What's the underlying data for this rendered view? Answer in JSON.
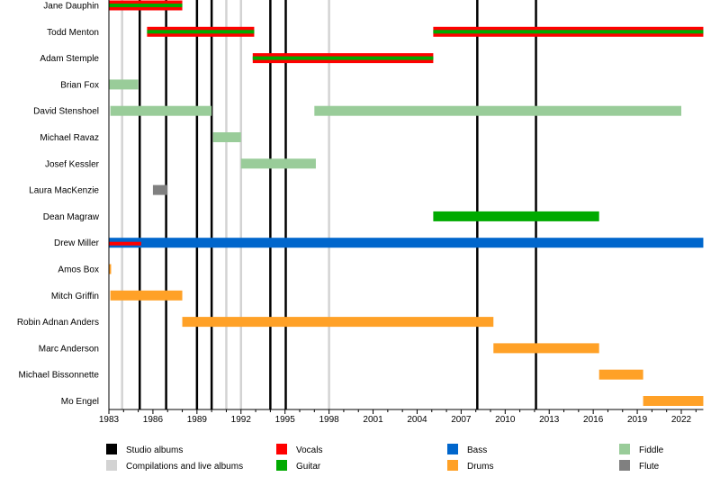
{
  "chart_data": {
    "type": "timeline",
    "xlim": [
      1983,
      2023.5
    ],
    "ticks": [
      1983,
      1986,
      1989,
      1992,
      1995,
      1998,
      2001,
      2004,
      2007,
      2010,
      2013,
      2016,
      2019,
      2022
    ],
    "tick_labels": [
      "1983",
      "1986",
      "1989",
      "1992",
      "1995",
      "1998",
      "2001",
      "2004",
      "2007",
      "2010",
      "2013",
      "2016",
      "2019",
      "2022"
    ],
    "studio_albums": [
      1985.1,
      1986.9,
      1989.0,
      1990.0,
      1994.0,
      1995.05,
      2008.1,
      2012.1
    ],
    "compilations": [
      1983.9,
      1991.0,
      1992.0,
      1998.0
    ],
    "colors": {
      "vocals": "#ff0000",
      "guitar": "#00aa00",
      "bass": "#0066cc",
      "drums": "#ffa127",
      "fiddle": "#99cc99",
      "flute": "#808080",
      "studio": "#000000",
      "compilation": "#d3d3d3"
    },
    "members": [
      {
        "name": "Jane Dauphin",
        "spans": [
          {
            "role": "vocals+guitar",
            "start": 1983,
            "end": 1988
          }
        ]
      },
      {
        "name": "Todd Menton",
        "spans": [
          {
            "role": "vocals+guitar",
            "start": 1985.6,
            "end": 1992.9
          },
          {
            "role": "vocals+guitar",
            "start": 2005.1,
            "end": 2023.5
          }
        ]
      },
      {
        "name": "Adam Stemple",
        "spans": [
          {
            "role": "vocals+guitar",
            "start": 1992.8,
            "end": 2005.1
          }
        ]
      },
      {
        "name": "Brian Fox",
        "spans": [
          {
            "role": "fiddle",
            "start": 1983,
            "end": 1985
          }
        ]
      },
      {
        "name": "David Stenshoel",
        "spans": [
          {
            "role": "fiddle",
            "start": 1983.1,
            "end": 1990
          },
          {
            "role": "fiddle",
            "start": 1997,
            "end": 2022
          }
        ]
      },
      {
        "name": "Michael Ravaz",
        "spans": [
          {
            "role": "fiddle",
            "start": 1990.1,
            "end": 1992
          }
        ]
      },
      {
        "name": "Josef Kessler",
        "spans": [
          {
            "role": "fiddle",
            "start": 1992,
            "end": 1997.1
          }
        ]
      },
      {
        "name": "Laura MacKenzie",
        "spans": [
          {
            "role": "flute",
            "start": 1986,
            "end": 1987
          }
        ]
      },
      {
        "name": "Dean Magraw",
        "spans": [
          {
            "role": "guitar",
            "start": 2005.1,
            "end": 2016.4
          }
        ]
      },
      {
        "name": "Drew Miller",
        "spans": [
          {
            "role": "bass",
            "start": 1983,
            "end": 2023.5
          },
          {
            "role": "vocals-thin",
            "start": 1983,
            "end": 1985.2
          }
        ]
      },
      {
        "name": "Amos Box",
        "spans": [
          {
            "role": "drums",
            "start": 1983,
            "end": 1983.15
          }
        ]
      },
      {
        "name": "Mitch Griffin",
        "spans": [
          {
            "role": "drums",
            "start": 1983.1,
            "end": 1988
          }
        ]
      },
      {
        "name": "Robin Adnan Anders",
        "spans": [
          {
            "role": "drums",
            "start": 1988,
            "end": 2009.2
          }
        ]
      },
      {
        "name": "Marc Anderson",
        "spans": [
          {
            "role": "drums",
            "start": 2009.2,
            "end": 2016.4
          }
        ]
      },
      {
        "name": "Michael Bissonnette",
        "spans": [
          {
            "role": "drums",
            "start": 2016.4,
            "end": 2019.4
          }
        ]
      },
      {
        "name": "Mo Engel",
        "spans": [
          {
            "role": "drums",
            "start": 2019.4,
            "end": 2023.5
          }
        ]
      }
    ],
    "legend": [
      {
        "label": "Studio albums",
        "color": "#000000"
      },
      {
        "label": "Compilations and live albums",
        "color": "#d3d3d3"
      },
      {
        "label": "Vocals",
        "color": "#ff0000"
      },
      {
        "label": "Guitar",
        "color": "#00aa00"
      },
      {
        "label": "Bass",
        "color": "#0066cc"
      },
      {
        "label": "Drums",
        "color": "#ffa127"
      },
      {
        "label": "Fiddle",
        "color": "#99cc99"
      },
      {
        "label": "Flute",
        "color": "#808080"
      }
    ]
  }
}
